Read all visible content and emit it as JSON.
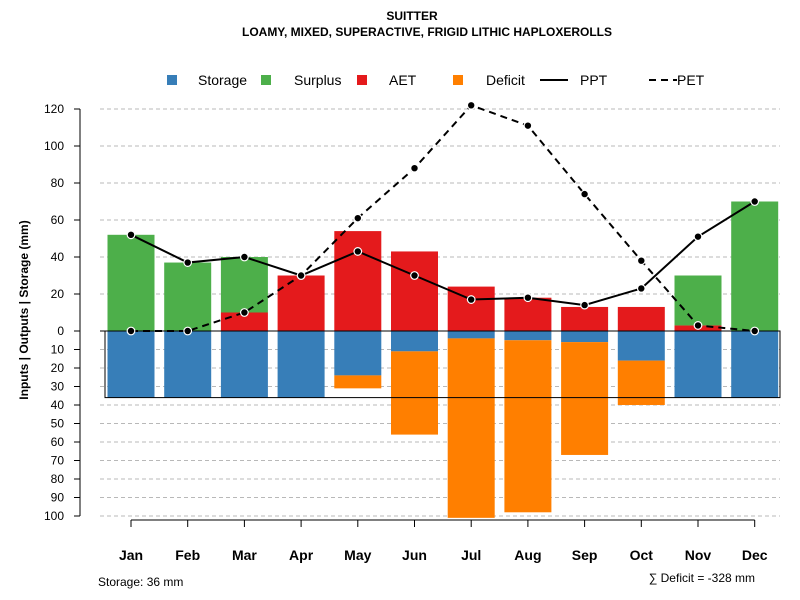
{
  "chart_data": {
    "type": "bar",
    "title": "SUITTER",
    "subtitle": "LOAMY, MIXED, SUPERACTIVE, FRIGID LITHIC HAPLOXEROLLS",
    "ylabel": "Inputs | Outputs | Storage    (mm)",
    "categories": [
      "Jan",
      "Feb",
      "Mar",
      "Apr",
      "May",
      "Jun",
      "Jul",
      "Aug",
      "Sep",
      "Oct",
      "Nov",
      "Dec"
    ],
    "upper_ylim": [
      0,
      120
    ],
    "lower_ylim": [
      0,
      100
    ],
    "upper_ticks": [
      "0",
      "20",
      "40",
      "60",
      "80",
      "100",
      "120"
    ],
    "lower_ticks": [
      "10",
      "20",
      "30",
      "40",
      "50",
      "60",
      "70",
      "80",
      "90",
      "100"
    ],
    "grid": true,
    "legend": {
      "position": "top",
      "items": [
        {
          "label": "Storage",
          "kind": "square",
          "color": "#377EB8"
        },
        {
          "label": "Surplus",
          "kind": "square",
          "color": "#4DAF4A"
        },
        {
          "label": "AET",
          "kind": "square",
          "color": "#E41A1C"
        },
        {
          "label": "Deficit",
          "kind": "square",
          "color": "#FF7F00"
        },
        {
          "label": "PPT",
          "kind": "solid-line",
          "color": "#000000"
        },
        {
          "label": "PET",
          "kind": "dashed-line",
          "color": "#000000"
        }
      ]
    },
    "series": [
      {
        "name": "AET",
        "values": [
          0,
          0,
          10,
          30,
          54,
          43,
          24,
          18,
          13,
          13,
          3,
          0
        ]
      },
      {
        "name": "Surplus",
        "values": [
          52,
          37,
          30,
          0,
          0,
          0,
          0,
          0,
          0,
          0,
          27,
          70
        ]
      },
      {
        "name": "Storage",
        "values": [
          36,
          36,
          36,
          36,
          24,
          11,
          4,
          5,
          6,
          16,
          36,
          36
        ]
      },
      {
        "name": "Deficit",
        "values": [
          0,
          0,
          0,
          0,
          7,
          45,
          97,
          93,
          61,
          24,
          0,
          0
        ]
      },
      {
        "name": "PPT",
        "values": [
          52,
          37,
          40,
          30,
          43,
          30,
          17,
          18,
          14,
          23,
          51,
          70
        ]
      },
      {
        "name": "PET",
        "values": [
          0,
          0,
          10,
          30,
          61,
          88,
          122,
          111,
          74,
          38,
          3,
          0
        ]
      }
    ],
    "storage_capacity": 36,
    "notes": {
      "storage": "Storage: 36 mm",
      "deficit": "∑ Deficit = -328 mm"
    }
  }
}
